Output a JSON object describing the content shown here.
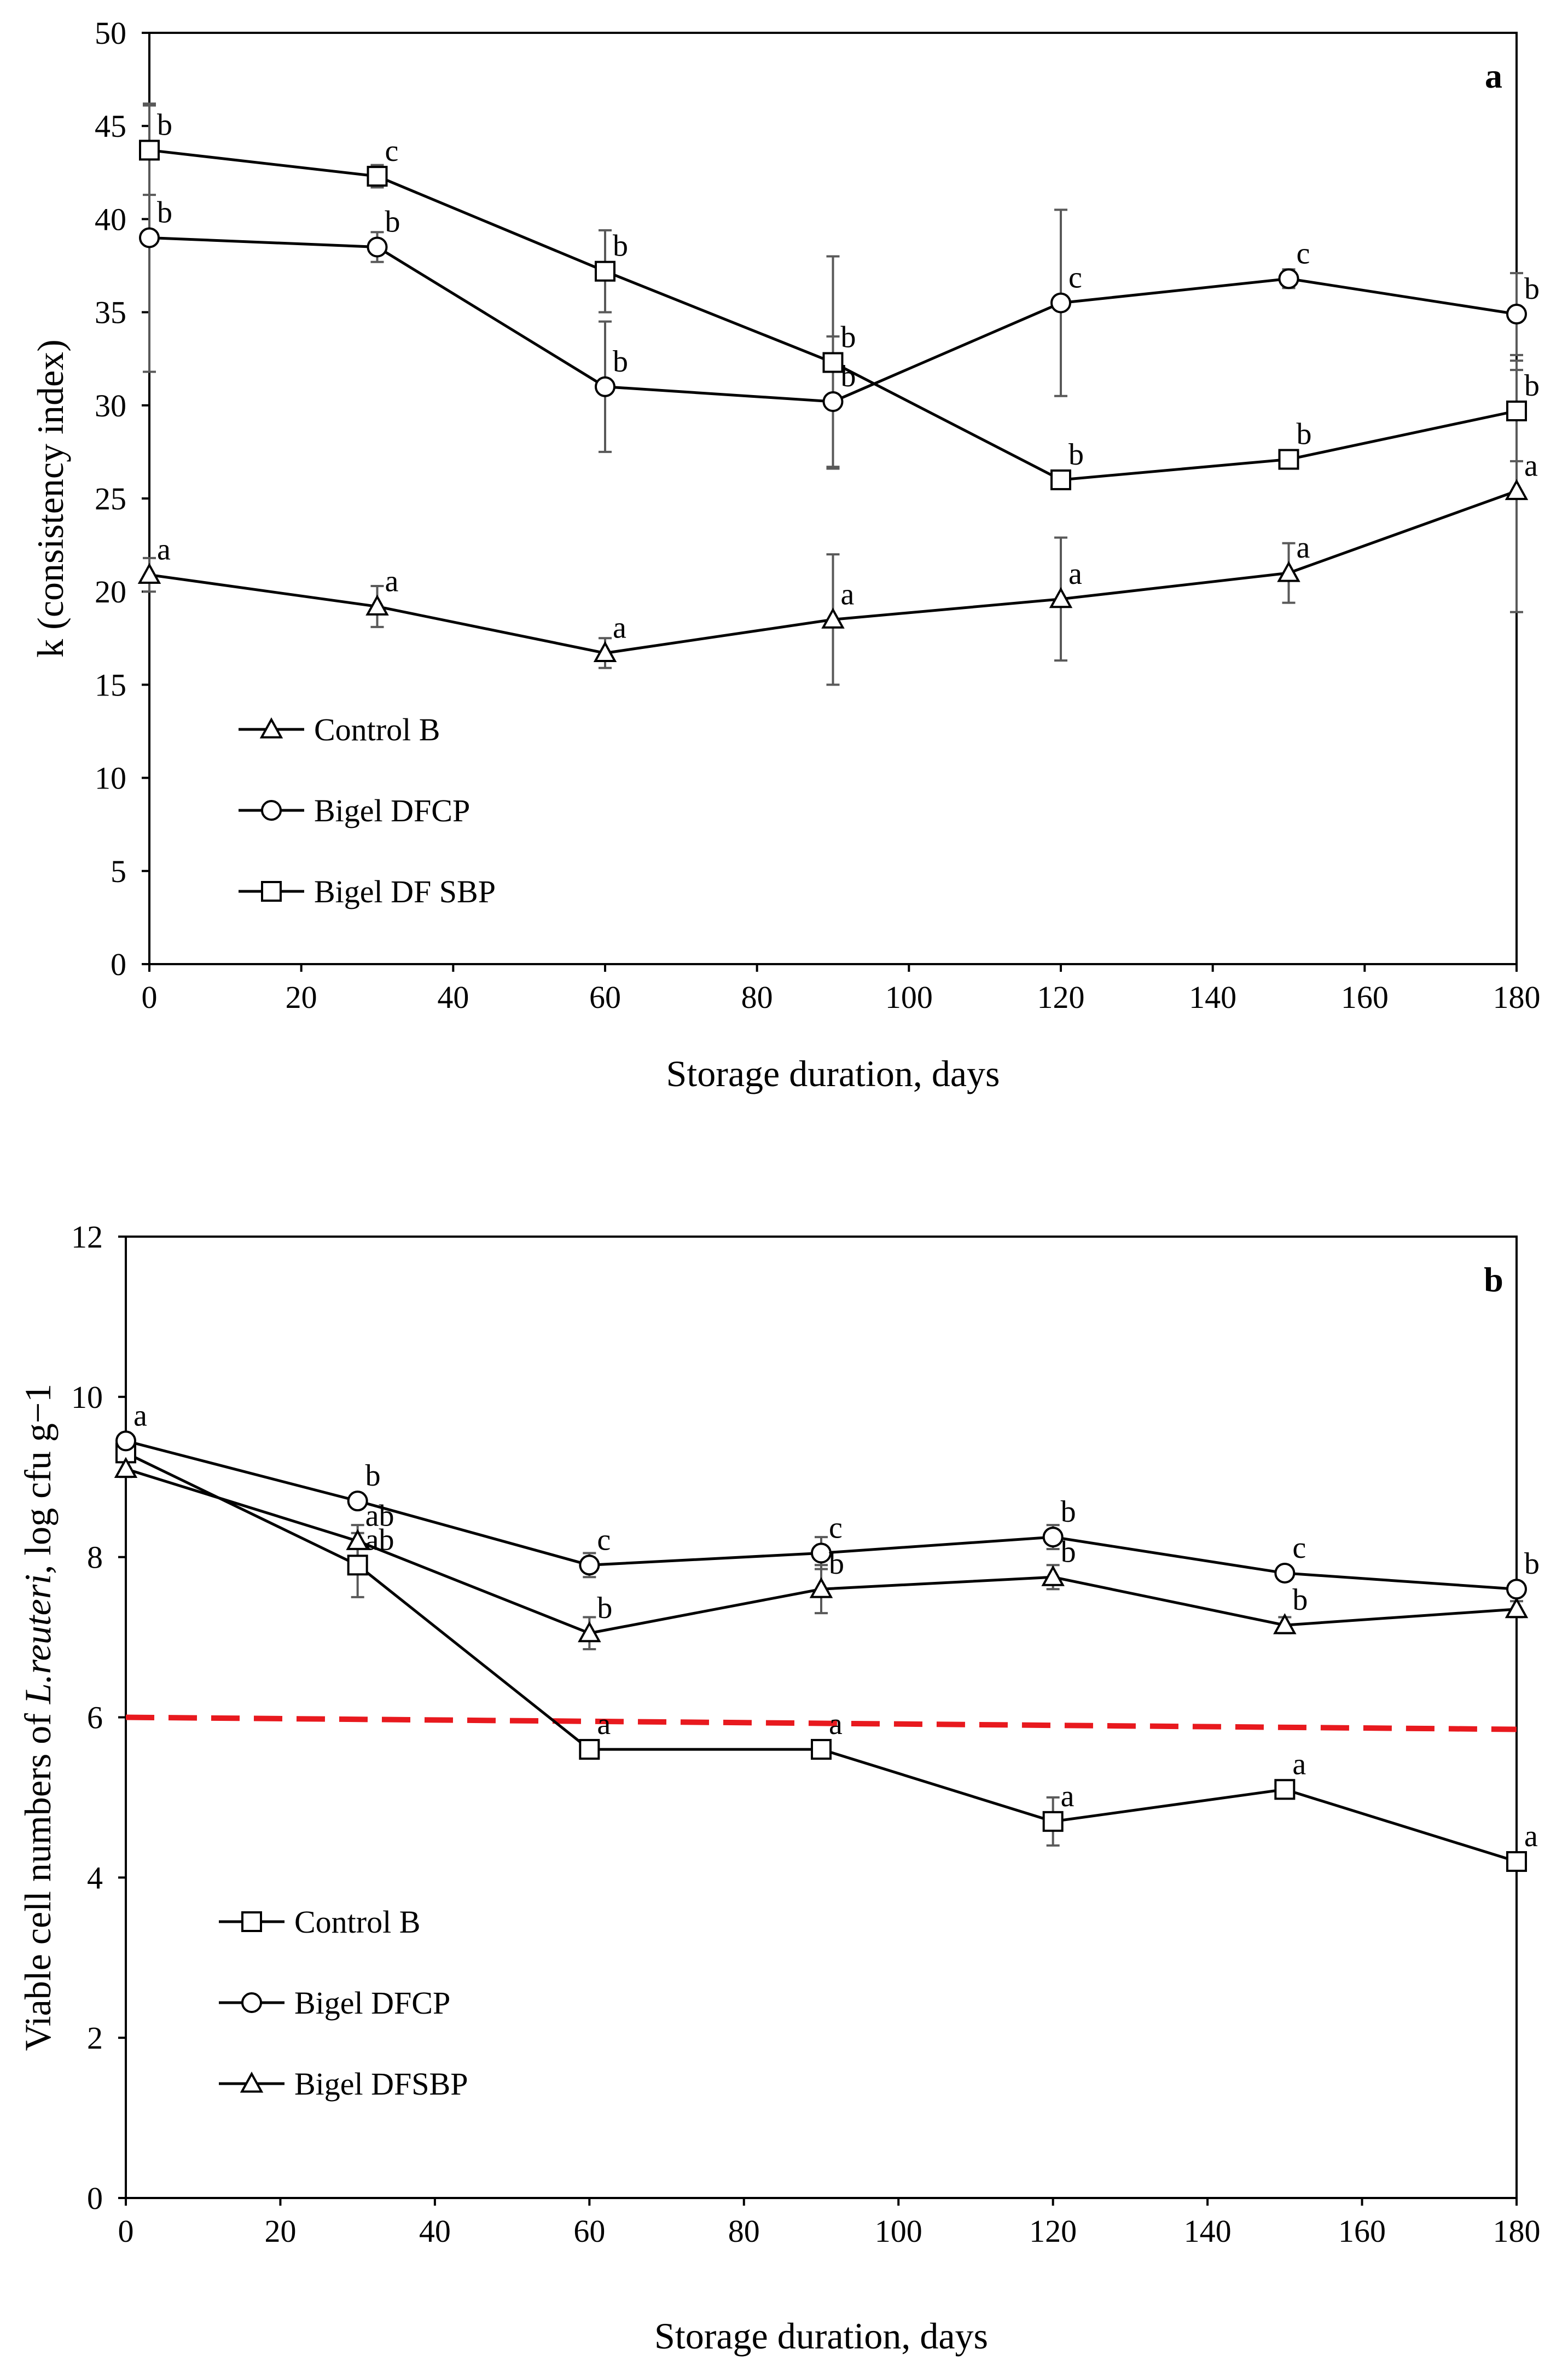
{
  "chart_data": [
    {
      "type": "line",
      "panel_label": "a",
      "xlabel": "Storage duration, days",
      "ylabel": "k (consistency index)",
      "xlim": [
        0,
        180
      ],
      "ylim": [
        0,
        50
      ],
      "x_ticks": [
        0,
        20,
        40,
        60,
        80,
        100,
        120,
        140,
        160,
        180
      ],
      "y_ticks": [
        0,
        5,
        10,
        15,
        20,
        25,
        30,
        35,
        40,
        45,
        50
      ],
      "x": [
        0,
        30,
        60,
        90,
        120,
        150,
        180
      ],
      "series": [
        {
          "name": "Control B",
          "marker": "triangle",
          "values": [
            20.9,
            19.2,
            16.7,
            18.5,
            19.6,
            21.0,
            25.4
          ],
          "errors": [
            0.9,
            1.1,
            0.8,
            3.5,
            3.3,
            1.6,
            6.5
          ],
          "letters": [
            "a",
            "a",
            "a",
            "a",
            "a",
            "a",
            "a"
          ]
        },
        {
          "name": "Bigel DFCP",
          "marker": "circle",
          "values": [
            39.0,
            38.5,
            31.0,
            30.2,
            35.5,
            36.8,
            34.9
          ],
          "errors": [
            7.2,
            0.8,
            3.5,
            3.5,
            5.0,
            0.5,
            2.2
          ],
          "letters": [
            "b",
            "b",
            "b",
            "b",
            "c",
            "c",
            "b"
          ]
        },
        {
          "name": "Bigel DF SBP",
          "marker": "square",
          "values": [
            43.7,
            42.3,
            37.2,
            32.3,
            26.0,
            27.1,
            29.7
          ],
          "errors": [
            2.4,
            0.6,
            2.2,
            5.7,
            0.3,
            0.4,
            2.7
          ],
          "letters": [
            "b",
            "c",
            "b",
            "b",
            "b",
            "b",
            "b"
          ]
        }
      ]
    },
    {
      "type": "line",
      "panel_label": "b",
      "xlabel": "Storage duration, days",
      "ylabel_parts": [
        "Viable cell numbers of ",
        "L.reuteri",
        ", log cfu g−1"
      ],
      "xlim": [
        0,
        180
      ],
      "ylim": [
        0,
        12
      ],
      "x_ticks": [
        0,
        20,
        40,
        60,
        80,
        100,
        120,
        140,
        160,
        180
      ],
      "y_ticks": [
        0,
        2,
        4,
        6,
        8,
        10,
        12
      ],
      "x": [
        0,
        30,
        60,
        90,
        120,
        150,
        180
      ],
      "threshold": {
        "x": [
          0,
          180
        ],
        "y": [
          6.0,
          5.85
        ],
        "color": "#e8191e"
      },
      "series": [
        {
          "name": "Control B",
          "marker": "square",
          "values": [
            9.3,
            7.9,
            5.6,
            5.6,
            4.7,
            5.1,
            4.2
          ],
          "errors": [
            0.1,
            0.4,
            0.1,
            0.05,
            0.3,
            0.1,
            0.05
          ],
          "letters": [
            "",
            "ab",
            "a",
            "a",
            "a",
            "a",
            "a"
          ]
        },
        {
          "name": "Bigel DFCP",
          "marker": "circle",
          "values": [
            9.45,
            8.7,
            7.9,
            8.05,
            8.25,
            7.8,
            7.6
          ],
          "errors": [
            0.05,
            0.05,
            0.15,
            0.2,
            0.15,
            0.05,
            0.05
          ],
          "letters": [
            "a",
            "b",
            "c",
            "c",
            "b",
            "c",
            "b"
          ]
        },
        {
          "name": "Bigel DFSBP",
          "marker": "triangle",
          "values": [
            9.1,
            8.2,
            7.05,
            7.6,
            7.75,
            7.15,
            7.35
          ],
          "errors": [
            0.1,
            0.2,
            0.2,
            0.3,
            0.15,
            0.1,
            0.1
          ],
          "letters": [
            "",
            "ab",
            "b",
            "b",
            "b",
            "b",
            ""
          ]
        }
      ]
    }
  ]
}
